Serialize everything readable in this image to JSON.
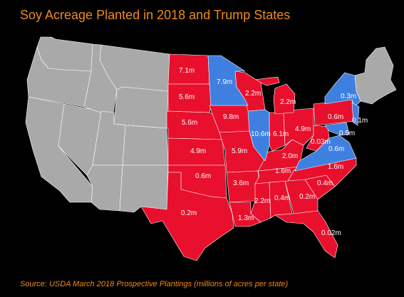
{
  "title": "Soy Acreage Planted in 2018 and Trump States",
  "source": "Source: USDA March 2018 Prospective Plantings (millions of acres per state)",
  "colors": {
    "trump_state": "#e8102c",
    "clinton_state": "#3f7fe0",
    "no_data_state": "#a9a9a9",
    "background": "#000000",
    "title_text": "#f08a1c",
    "label_text": "#ffffff"
  },
  "map_data": {
    "unit": "millions of acres",
    "states": [
      {
        "id": "north-dakota",
        "value": "7.1m",
        "group": "trump"
      },
      {
        "id": "minnesota",
        "value": "7.9m",
        "group": "clinton"
      },
      {
        "id": "south-dakota",
        "value": "5.6m",
        "group": "trump"
      },
      {
        "id": "wisconsin",
        "value": "2.2m",
        "group": "trump"
      },
      {
        "id": "michigan",
        "value": "2.2m",
        "group": "trump"
      },
      {
        "id": "new-york",
        "value": "0.3m",
        "group": "clinton"
      },
      {
        "id": "nebraska",
        "value": "5.6m",
        "group": "trump"
      },
      {
        "id": "iowa",
        "value": "9.8m",
        "group": "trump"
      },
      {
        "id": "illinois",
        "value": "10.6m",
        "group": "clinton"
      },
      {
        "id": "indiana",
        "value": "6.1m",
        "group": "trump"
      },
      {
        "id": "ohio",
        "value": "4.9m",
        "group": "trump"
      },
      {
        "id": "pennsylvania",
        "value": "0.6m",
        "group": "trump"
      },
      {
        "id": "new-jersey",
        "value": "0.1m",
        "group": "clinton"
      },
      {
        "id": "maryland",
        "value": "0.5m",
        "group": "clinton"
      },
      {
        "id": "west-virginia",
        "value": "0.03m",
        "group": "trump"
      },
      {
        "id": "virginia",
        "value": "0.6m",
        "group": "clinton"
      },
      {
        "id": "kansas",
        "value": "4.9m",
        "group": "trump"
      },
      {
        "id": "missouri",
        "value": "5.9m",
        "group": "trump"
      },
      {
        "id": "kentucky",
        "value": "2.0m",
        "group": "trump"
      },
      {
        "id": "tennessee",
        "value": "1.6m",
        "group": "trump"
      },
      {
        "id": "north-carolina",
        "value": "1.6m",
        "group": "trump"
      },
      {
        "id": "oklahoma",
        "value": "0.6m",
        "group": "trump"
      },
      {
        "id": "arkansas",
        "value": "3.6m",
        "group": "trump"
      },
      {
        "id": "south-carolina",
        "value": "0.4m",
        "group": "trump"
      },
      {
        "id": "mississippi",
        "value": "2.2m",
        "group": "trump"
      },
      {
        "id": "alabama",
        "value": "0.4m",
        "group": "trump"
      },
      {
        "id": "georgia",
        "value": "0.2m",
        "group": "trump"
      },
      {
        "id": "texas",
        "value": "0.2m",
        "group": "trump"
      },
      {
        "id": "louisiana",
        "value": "1.3m",
        "group": "trump"
      },
      {
        "id": "florida",
        "value": "0.02m",
        "group": "trump"
      }
    ]
  }
}
